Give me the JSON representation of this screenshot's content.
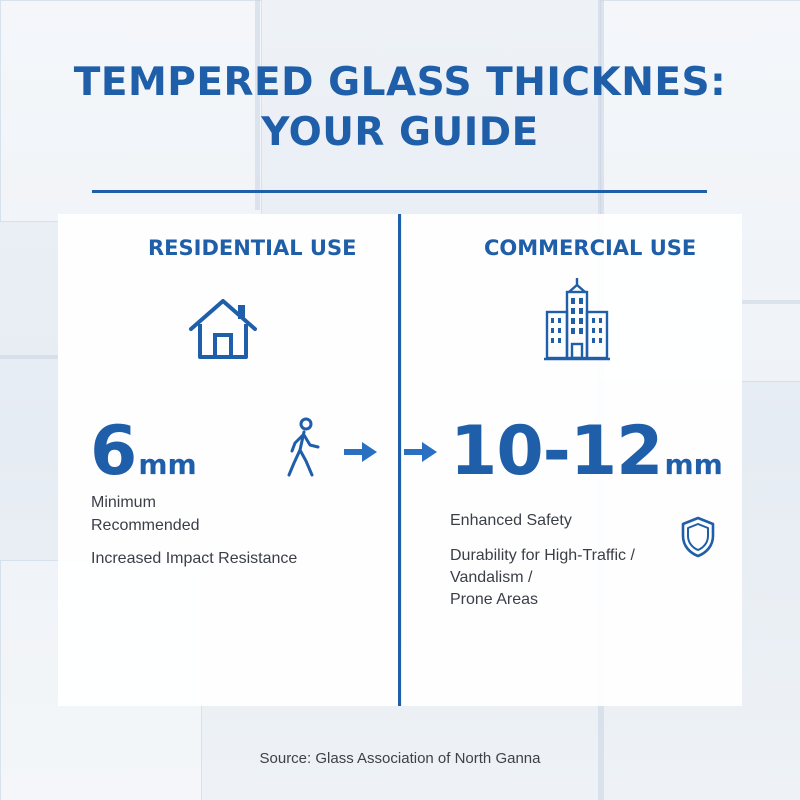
{
  "title": {
    "line1": "TEMPERED GLASS THICKNES:",
    "line2": "YOUR GUIDE"
  },
  "residential": {
    "heading": "RESIDENTIAL USE",
    "value": "6",
    "unit": "mm",
    "line1": "Minimum",
    "line2": "Recommended",
    "line3": "Increased Impact Resistance"
  },
  "commercial": {
    "heading": "COMMERCIAL USE",
    "value": "10-12",
    "unit": "mm",
    "line1": "Enhanced Safety",
    "line2": "Durability for High-Traffic /",
    "line3": "Vandalism /",
    "line4": "Prone Areas"
  },
  "source": "Source: Glass Association of North Ganna",
  "icons": [
    "house-icon",
    "office-building-icon",
    "walking-person-icon",
    "arrow-right-icon",
    "shield-icon"
  ],
  "colors": {
    "accent": "#1f5ea8",
    "text": "#3a3f47"
  }
}
